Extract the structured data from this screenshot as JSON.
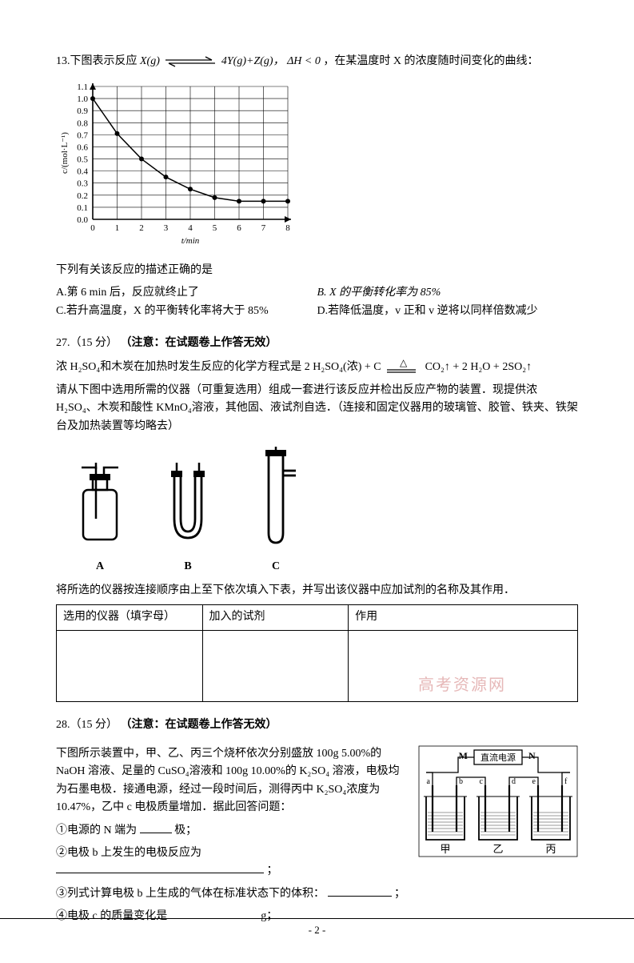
{
  "q13": {
    "intro_pre": "13.下图表示反应 ",
    "reaction_lhs": "X(g)",
    "reaction_rhs": "4Y(g)+Z(g)，",
    "dh": "ΔH < 0",
    "intro_post": "，在某温度时 X 的浓度随时间变化的曲线：",
    "chart": {
      "type": "line",
      "xlabel": "t/min",
      "ylabel": "c/(mol·L⁻¹)",
      "xlim": [
        0,
        8
      ],
      "ylim": [
        0,
        1.1
      ],
      "xticks": [
        0,
        1,
        2,
        3,
        4,
        5,
        6,
        7,
        8
      ],
      "yticks": [
        0,
        0.1,
        0.2,
        0.3,
        0.4,
        0.5,
        0.6,
        0.7,
        0.8,
        0.9,
        1.0,
        1.1
      ],
      "grid_color": "#000000",
      "background_color": "#ffffff",
      "line_color": "#000000",
      "marker": "circle",
      "marker_fill": "#000000",
      "marker_size": 3,
      "line_width": 1.5,
      "points_x": [
        0,
        1,
        2,
        3,
        4,
        5,
        6,
        7,
        8
      ],
      "points_y": [
        1.0,
        0.71,
        0.5,
        0.35,
        0.25,
        0.18,
        0.15,
        0.15,
        0.15
      ],
      "label_fontsize": 11
    },
    "stem": "下列有关该反应的描述正确的是",
    "options": {
      "A": "A.第 6 min 后，反应就终止了",
      "B": "B. X 的平衡转化率为 85%",
      "C": "C.若升高温度，X 的平衡转化率将大于 85%",
      "D": "D.若降低温度，v 正和 v 逆将以同样倍数减少"
    }
  },
  "q27": {
    "head_pre": "27.（15 分）",
    "head_note": "（注意：在试题卷上作答无效）",
    "p1": "浓 H₂SO₄和木炭在加热时发生反应的化学方程式是 2 H₂SO₄(浓) + C",
    "p1_rhs": "CO₂↑ + 2 H₂O + 2SO₂↑",
    "p2": "请从下图中选用所需的仪器（可重复选用）组成一套进行该反应并检出反应产物的装置．现提供浓 H₂SO₄、木炭和酸性 KMnO₄溶液，其他固、液试剂自选．（连接和固定仪器用的玻璃管、胶管、铁夹、铁架台及加热装置等均略去）",
    "apparatus": {
      "A": "A",
      "B": "B",
      "C": "C"
    },
    "table_intro": "将所选的仪器按连接顺序由上至下依次填入下表，并写出该仪器中应加试剂的名称及其作用．",
    "table_headers": {
      "c1": "选用的仪器（填字母）",
      "c2": "加入的试剂",
      "c3": "作用"
    }
  },
  "q28": {
    "head_pre": "28.（15 分）",
    "head_note": "（注意：在试题卷上作答无效）",
    "p1": "下图所示装置中，甲、乙、丙三个烧杯依次分别盛放 100g 5.00%的 NaOH 溶液、足量的 CuSO₄溶液和 100g 10.00%的 K₂SO₄ 溶液，电极均为石墨电极．接通电源，经过一段时间后，测得丙中 K₂SO₄浓度为 10.47%，乙中 c 电极质量增加．据此回答问题：",
    "l1_pre": "①电源的 N 端为",
    "l1_post": "极；",
    "l2_pre": "②电极 b 上发生的电极反应为",
    "l2_post": "；",
    "l3_pre": "③列式计算电极 b 上生成的气体在标准状态下的体积：",
    "l3_post": "；",
    "l4_pre": "④电极 c 的质量变化是",
    "l4_post": "g；",
    "figure": {
      "top_label": "直流电源",
      "M": "M",
      "N": "N",
      "electrodes": [
        "a",
        "b",
        "c",
        "d",
        "e",
        "f"
      ],
      "beakers": [
        "甲",
        "乙",
        "丙"
      ],
      "box_border": "#000000",
      "wire_color": "#000000"
    }
  },
  "watermark": "高考资源网",
  "footer": "- 2 -"
}
